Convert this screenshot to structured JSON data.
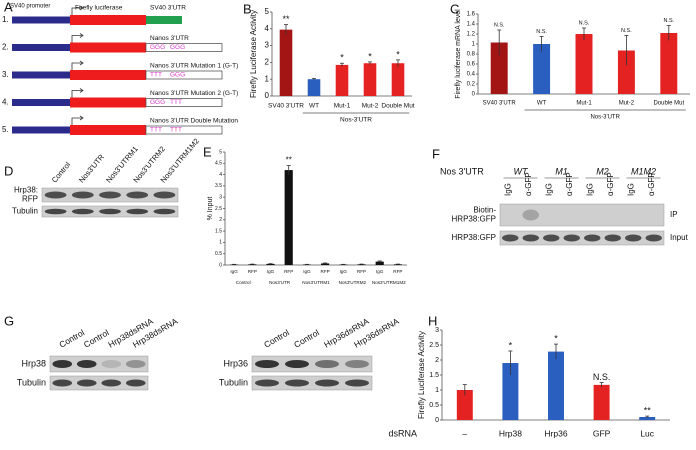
{
  "panel_labels": [
    "A",
    "B",
    "C",
    "D",
    "E",
    "F",
    "G",
    "H"
  ],
  "panel_a": {
    "promoter": "SV40 promoter",
    "luciferase": "Firefly luciferase",
    "utr": "SV40 3'UTR",
    "constructs": [
      {
        "number": "1."
      },
      {
        "number": "2.",
        "label": "Nanos 3'UTR",
        "marks": [
          "GGG",
          "GGG"
        ]
      },
      {
        "number": "3.",
        "label": "Nanos 3'UTR Mutation 1 (G-T)",
        "marks": [
          "TTT",
          "GGG"
        ]
      },
      {
        "number": "4.",
        "label": "Nanos 3'UTR Mutation 2 (G-T)",
        "marks": [
          "GGG",
          "TTT"
        ]
      },
      {
        "number": "5.",
        "label": "Nanos 3'UTR Double Mutation",
        "marks": [
          "TTT",
          "TTT"
        ]
      }
    ]
  },
  "chart_data": [
    {
      "type": "bar",
      "ylabel": "Firefly Luciferase Activity",
      "categories": [
        "SV40 3'UTR",
        "WT",
        "Mut-1",
        "Mut-2",
        "Double Mut"
      ],
      "values": [
        3.95,
        1.0,
        1.85,
        1.95,
        1.95
      ],
      "errors": [
        0.3,
        0.05,
        0.1,
        0.08,
        0.2
      ],
      "colors": [
        "#a31515",
        "#2a5fc0",
        "#e52222",
        "#e52222",
        "#e52222"
      ],
      "annotations": [
        "**",
        null,
        "*",
        "*",
        "*"
      ],
      "group_label": "Nos-3'UTR",
      "ylim": [
        0,
        5
      ],
      "yticks": [
        0,
        1,
        2,
        3,
        4,
        5
      ]
    },
    {
      "type": "bar",
      "ylabel": "Firefly luciferase mRNA level",
      "categories": [
        "SV40 3'UTR",
        "WT",
        "Mut-1",
        "Mut-2",
        "Double Mut"
      ],
      "values": [
        1.03,
        1.0,
        1.2,
        0.87,
        1.22
      ],
      "errors": [
        0.25,
        0.15,
        0.12,
        0.3,
        0.15
      ],
      "colors": [
        "#a31515",
        "#2a5fc0",
        "#e52222",
        "#e52222",
        "#e52222"
      ],
      "annotations": [
        "N.S.",
        "N.S.",
        "N.S.",
        "N.S.",
        "N.S."
      ],
      "group_label": "Nos-3'UTR",
      "ylim": [
        0,
        1.6
      ],
      "yticks": [
        0,
        0.2,
        0.4,
        0.6,
        0.8,
        1,
        1.2,
        1.4,
        1.6
      ]
    },
    {
      "type": "bar",
      "ylabel": "% Input",
      "categories": [
        "IgG",
        "RFP",
        "IgG",
        "RFP",
        "IgG",
        "RFP",
        "IgG",
        "RFP",
        "IgG",
        "RFP"
      ],
      "values": [
        0.02,
        0.03,
        0.05,
        4.2,
        0.02,
        0.07,
        0.02,
        0.03,
        0.15,
        0.03
      ],
      "errors": [
        0.01,
        0.01,
        0.01,
        0.2,
        0.01,
        0.02,
        0.01,
        0.01,
        0.03,
        0.01
      ],
      "color": "#111111",
      "annotations": [
        null,
        null,
        null,
        "**",
        null,
        null,
        null,
        null,
        null,
        null
      ],
      "group_labels": [
        "Control",
        "Nos3'UTR",
        "Nos3'UTRM1",
        "Nos3'UTRM2",
        "Nos3'UTRM1M2"
      ],
      "ylim": [
        0,
        5
      ],
      "yticks": [
        0,
        0.5,
        1,
        1.5,
        2,
        2.5,
        3,
        3.5,
        4,
        4.5,
        5
      ]
    },
    {
      "type": "bar",
      "ylabel": "Firefly Luciferase Activity",
      "xlabel": "dsRNA",
      "categories": [
        "–",
        "Hrp38",
        "Hrp36",
        "GFP",
        "Luc"
      ],
      "values": [
        1.0,
        1.9,
        2.28,
        1.17,
        0.1
      ],
      "errors": [
        0.18,
        0.4,
        0.25,
        0.08,
        0.03
      ],
      "colors": [
        "#e52222",
        "#2a5fc0",
        "#2a5fc0",
        "#e52222",
        "#2a5fc0"
      ],
      "annotations": [
        null,
        "*",
        "*",
        "N.S.",
        "**"
      ],
      "ylim": [
        0,
        3
      ],
      "yticks": [
        0,
        0.5,
        1,
        1.5,
        2,
        2.5,
        3
      ]
    }
  ],
  "blot_d": {
    "lanes": [
      "Control",
      "Nos3'UTR",
      "Nos3'UTRM1",
      "Nos3'UTRM2",
      "Nos3'UTRM1M2"
    ],
    "rows": [
      {
        "label": [
          "Hrp38:",
          "RFP"
        ]
      },
      {
        "label": [
          "Tubulin"
        ]
      }
    ]
  },
  "blot_f": {
    "header": "Nos 3'UTR",
    "groups": [
      "WT",
      "M1",
      "M2",
      "M1M2"
    ],
    "lanes": [
      "IgG",
      "α-GFP",
      "IgG",
      "α-GFP",
      "IgG",
      "α-GFP",
      "IgG",
      "α-GFP"
    ],
    "rows": [
      {
        "label": [
          "Biotin-",
          "HRP38:GFP"
        ],
        "side": "IP"
      },
      {
        "label": [
          "HRP38:GFP"
        ],
        "side": "Input"
      }
    ]
  },
  "blot_g1": {
    "lanes": [
      "Control",
      "Control",
      "Hrp38dsRNA",
      "Hrp38dsRNA"
    ],
    "rows": [
      {
        "label": [
          "Hrp38"
        ]
      },
      {
        "label": [
          "Tubulin"
        ]
      }
    ]
  },
  "blot_g2": {
    "lanes": [
      "Control",
      "Control",
      "Hrp36dsRNA",
      "Hrp36dsRNA"
    ],
    "rows": [
      {
        "label": [
          "Hrp36"
        ]
      },
      {
        "label": [
          "Tubulin"
        ]
      }
    ]
  }
}
